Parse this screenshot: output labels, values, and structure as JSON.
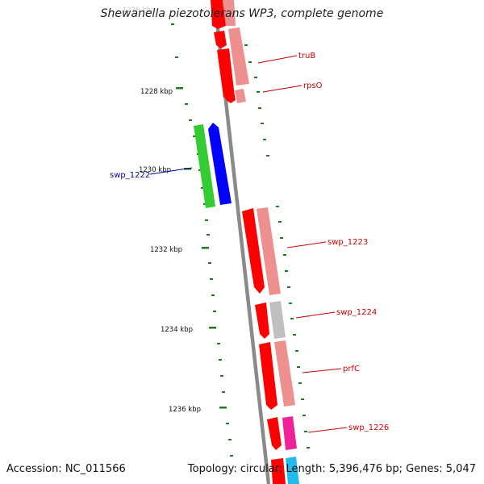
{
  "title": "Shewanella piezotolerans WP3, complete genome",
  "accession": "Accession: NC_011566",
  "topology": "Topology: circular; Length: 5,396,476 bp; Genes: 5,047",
  "top_partial_label": "1226 kbp",
  "ticks": [
    {
      "label": "1228 kbp",
      "pos_kbp": 1228
    },
    {
      "label": "1230 kbp",
      "pos_kbp": 1230
    },
    {
      "label": "1232 kbp",
      "pos_kbp": 1232
    },
    {
      "label": "1234 kbp",
      "pos_kbp": 1234
    },
    {
      "label": "1236 kbp",
      "pos_kbp": 1236
    }
  ],
  "colors": {
    "backbone": "#8a8a8a",
    "tick": "#1e7a1e",
    "cds_forward": "#ff0000",
    "cds_forward_shadow": "#ee9090",
    "cds_reverse": "#0000ff",
    "cds_reverse_shadow": "#33cc33",
    "label_forward": "#cc0000",
    "label_reverse": "#000099"
  },
  "genes": [
    {
      "name": "truB",
      "strand": "+"
    },
    {
      "name": "rpsO",
      "strand": "+"
    },
    {
      "name": "swp_1222",
      "strand": "-"
    },
    {
      "name": "swp_1223",
      "strand": "+"
    },
    {
      "name": "swp_1224",
      "strand": "+"
    },
    {
      "name": "prfC",
      "strand": "+"
    },
    {
      "name": "swp_1226",
      "strand": "+"
    }
  ]
}
